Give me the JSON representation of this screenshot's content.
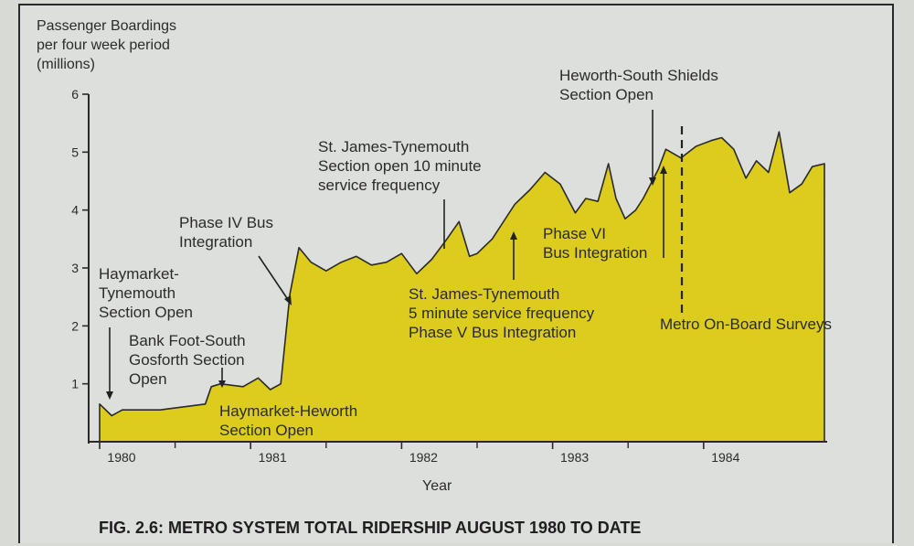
{
  "chart_data": {
    "type": "area",
    "title": "",
    "ylabel_lines": [
      "Passenger Boardings",
      "per four week period",
      "(millions)"
    ],
    "xlabel": "Year",
    "ylim": [
      0,
      6
    ],
    "yticks": [
      1,
      2,
      3,
      4,
      5,
      6
    ],
    "xlim": [
      1980.0,
      1985.0
    ],
    "xticks": [
      {
        "label": "1980",
        "x": 1980.0
      },
      {
        "label": "1981",
        "x": 1981.0
      },
      {
        "label": "1982",
        "x": 1982.0
      },
      {
        "label": "1983",
        "x": 1983.0
      },
      {
        "label": "1984",
        "x": 1984.0
      }
    ],
    "fill_color": "#dccc1e",
    "series": [
      {
        "x": [
          1980.0,
          1980.08,
          1980.15,
          1980.4,
          1980.7,
          1980.74,
          1980.8,
          1980.95,
          1981.05,
          1981.13,
          1981.2,
          1981.26,
          1981.32,
          1981.4,
          1981.5,
          1981.6,
          1981.7,
          1981.8,
          1981.9,
          1982.0,
          1982.1,
          1982.2,
          1982.3,
          1982.38,
          1982.45,
          1982.5,
          1982.6,
          1982.7,
          1982.75,
          1982.85,
          1982.95,
          1983.05,
          1983.15,
          1983.22,
          1983.3,
          1983.37,
          1983.42,
          1983.48,
          1983.55,
          1983.6,
          1983.7,
          1983.75,
          1983.85,
          1983.95,
          1984.05,
          1984.12,
          1984.2,
          1984.28,
          1984.35,
          1984.43,
          1984.5,
          1984.57,
          1984.65,
          1984.72,
          1984.8
        ],
        "values": [
          0.65,
          0.45,
          0.55,
          0.55,
          0.65,
          0.95,
          1.0,
          0.95,
          1.1,
          0.9,
          1.0,
          2.55,
          3.35,
          3.1,
          2.95,
          3.1,
          3.2,
          3.05,
          3.1,
          3.25,
          2.9,
          3.15,
          3.5,
          3.8,
          3.2,
          3.25,
          3.5,
          3.9,
          4.1,
          4.35,
          4.65,
          4.45,
          3.95,
          4.2,
          4.15,
          4.8,
          4.2,
          3.85,
          4.0,
          4.2,
          4.7,
          5.05,
          4.9,
          5.1,
          5.2,
          5.25,
          5.05,
          4.55,
          4.85,
          4.65,
          5.35,
          4.3,
          4.45,
          4.75,
          4.8
        ]
      }
    ],
    "annotations": [
      {
        "id": "haymarket-tynemouth",
        "lines": [
          "Haymarket-",
          "Tynemouth",
          "Section Open"
        ]
      },
      {
        "id": "bank-foot",
        "lines": [
          "Bank Foot-South",
          "Gosforth Section",
          "Open"
        ]
      },
      {
        "id": "haymarket-heworth",
        "lines": [
          "Haymarket-Heworth",
          "Section Open"
        ]
      },
      {
        "id": "phase-iv",
        "lines": [
          "Phase IV Bus",
          "Integration"
        ]
      },
      {
        "id": "st-james-10",
        "lines": [
          "St. James-Tynemouth",
          "Section open 10 minute",
          "service frequency"
        ]
      },
      {
        "id": "st-james-5",
        "lines": [
          "St. James-Tynemouth",
          "5 minute service frequency",
          "Phase V Bus Integration"
        ]
      },
      {
        "id": "phase-vi",
        "lines": [
          "Phase VI",
          "Bus Integration"
        ]
      },
      {
        "id": "heworth-south-shields",
        "lines": [
          "Heworth-South Shields",
          "Section Open"
        ]
      },
      {
        "id": "surveys",
        "lines": [
          "Metro On-Board Surveys"
        ]
      }
    ],
    "caption": "FIG. 2.6: METRO SYSTEM TOTAL RIDERSHIP AUGUST 1980 TO DATE"
  }
}
